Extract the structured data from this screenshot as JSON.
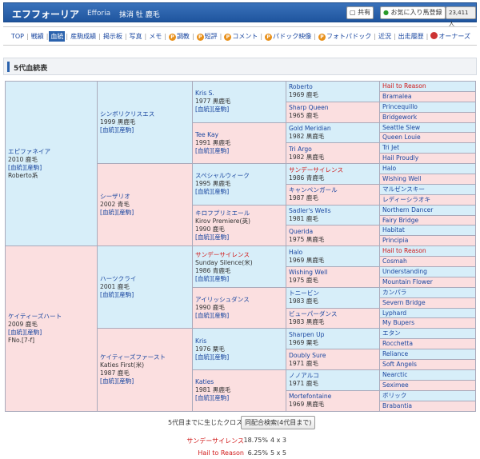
{
  "header": {
    "name": "エフフォーリア",
    "name_en": "Efforia",
    "status": "抹消 牡 鹿毛",
    "share": "共有",
    "favorite": "お気に入り馬登録",
    "count": "23,411 人"
  },
  "nav": {
    "premium_mark": "P",
    "items": [
      {
        "label": "TOP"
      },
      {
        "label": "戦績"
      },
      {
        "label": "血統",
        "selected": true
      },
      {
        "label": "産駒成績"
      },
      {
        "label": "掲示板"
      },
      {
        "label": "写真"
      },
      {
        "label": "メモ"
      },
      {
        "label": "調教",
        "premium": true
      },
      {
        "label": "短評",
        "premium": true
      },
      {
        "label": "コメント",
        "premium": true
      },
      {
        "label": "パドック映像",
        "premium": true
      },
      {
        "label": "フォトパドック",
        "premium": true
      },
      {
        "label": "近況"
      },
      {
        "label": "出走履歴"
      },
      {
        "label": "オーナーズ",
        "owners": true
      }
    ]
  },
  "section_title": "5代血統表",
  "pedigree": {
    "gen1": [
      {
        "name": "エピファネイア",
        "year": "2010 鹿毛",
        "links": "[血統][産駒]",
        "note": "Roberto系"
      },
      {
        "name": "ケイティーズハート",
        "year": "2009 鹿毛",
        "links": "[血統][産駒]",
        "note": "FNo.[7-f]"
      }
    ],
    "gen2": [
      {
        "name": "シンボリクリスエス",
        "year": "1999 黒鹿毛",
        "links": "[血統][産駒]"
      },
      {
        "name": "シーザリオ",
        "year": "2002 青毛",
        "links": "[血統][産駒]"
      },
      {
        "name": "ハーツクライ",
        "year": "2001 鹿毛",
        "links": "[血統][産駒]"
      },
      {
        "name": "ケイティーズファースト",
        "sub": "Katies First(米)",
        "year": "1987 鹿毛",
        "links": "[血統][産駒]"
      }
    ],
    "gen3": [
      {
        "name": "Kris S.",
        "year": "1977 黒鹿毛",
        "links": "[血統][産駒]"
      },
      {
        "name": "Tee Kay",
        "year": "1991 黒鹿毛",
        "links": "[血統][産駒]"
      },
      {
        "name": "スペシャルウィーク",
        "year": "1995 黒鹿毛",
        "links": "[血統][産駒]"
      },
      {
        "name": "キロフプリミエール",
        "sub": "Kirov Premiere(英)",
        "year": "1990 鹿毛",
        "links": "[血統][産駒]"
      },
      {
        "name": "サンデーサイレンス",
        "sub": "Sunday Silence(米)",
        "year": "1986 青鹿毛",
        "links": "[血統][産駒]"
      },
      {
        "name": "アイリッシュダンス",
        "year": "1990 鹿毛",
        "links": "[血統][産駒]"
      },
      {
        "name": "Kris",
        "year": "1976 栗毛",
        "links": "[血統][産駒]"
      },
      {
        "name": "Katies",
        "year": "1981 黒鹿毛",
        "links": "[血統][産駒]"
      }
    ],
    "gen4": [
      {
        "name": "Roberto",
        "year": "1969 鹿毛"
      },
      {
        "name": "Sharp Queen",
        "year": "1965 鹿毛"
      },
      {
        "name": "Gold Meridian",
        "year": "1982 黒鹿毛"
      },
      {
        "name": "Tri Argo",
        "year": "1982 黒鹿毛"
      },
      {
        "name": "サンデーサイレンス",
        "year": "1986 青鹿毛"
      },
      {
        "name": "キャンペンガール",
        "year": "1987 鹿毛"
      },
      {
        "name": "Sadler's Wells",
        "year": "1981 鹿毛"
      },
      {
        "name": "Querida",
        "year": "1975 黒鹿毛"
      },
      {
        "name": "Halo",
        "year": "1969 黒鹿毛"
      },
      {
        "name": "Wishing Well",
        "year": "1975 鹿毛"
      },
      {
        "name": "トニービン",
        "year": "1983 鹿毛"
      },
      {
        "name": "ビューパーダンス",
        "year": "1983 黒鹿毛"
      },
      {
        "name": "Sharpen Up",
        "year": "1969 栗毛"
      },
      {
        "name": "Doubly Sure",
        "year": "1971 鹿毛"
      },
      {
        "name": "ノノアルコ",
        "year": "1971 鹿毛"
      },
      {
        "name": "Mortefontaine",
        "year": "1969 黒鹿毛"
      }
    ],
    "gen5": [
      "Hail to Reason",
      "Bramalea",
      "Princequillo",
      "Bridgework",
      "Seattle Slew",
      "Queen Louie",
      "Tri Jet",
      "Hail Proudly",
      "Halo",
      "Wishing Well",
      "マルゼンスキー",
      "レディーシラオキ",
      "Northern Dancer",
      "Fairy Bridge",
      "Habitat",
      "Principia",
      "Hail to Reason",
      "Cosmah",
      "Understanding",
      "Mountain Flower",
      "カンパラ",
      "Severn Bridge",
      "Lyphard",
      "My Bupers",
      "エタン",
      "Rocchetta",
      "Reliance",
      "Soft Angels",
      "Nearctic",
      "Seximee",
      "ボリック",
      "Brabantia"
    ]
  },
  "cross_title": "5代目までに生じたクロス",
  "cross_search": "同配合検索(4代目まで)",
  "crosses": [
    {
      "name": "サンデーサイレンス",
      "percent": "18.75%",
      "generations": "4 x 3"
    },
    {
      "name": "Hail to Reason",
      "percent": "6.25%",
      "generations": "5 x 5"
    }
  ]
}
